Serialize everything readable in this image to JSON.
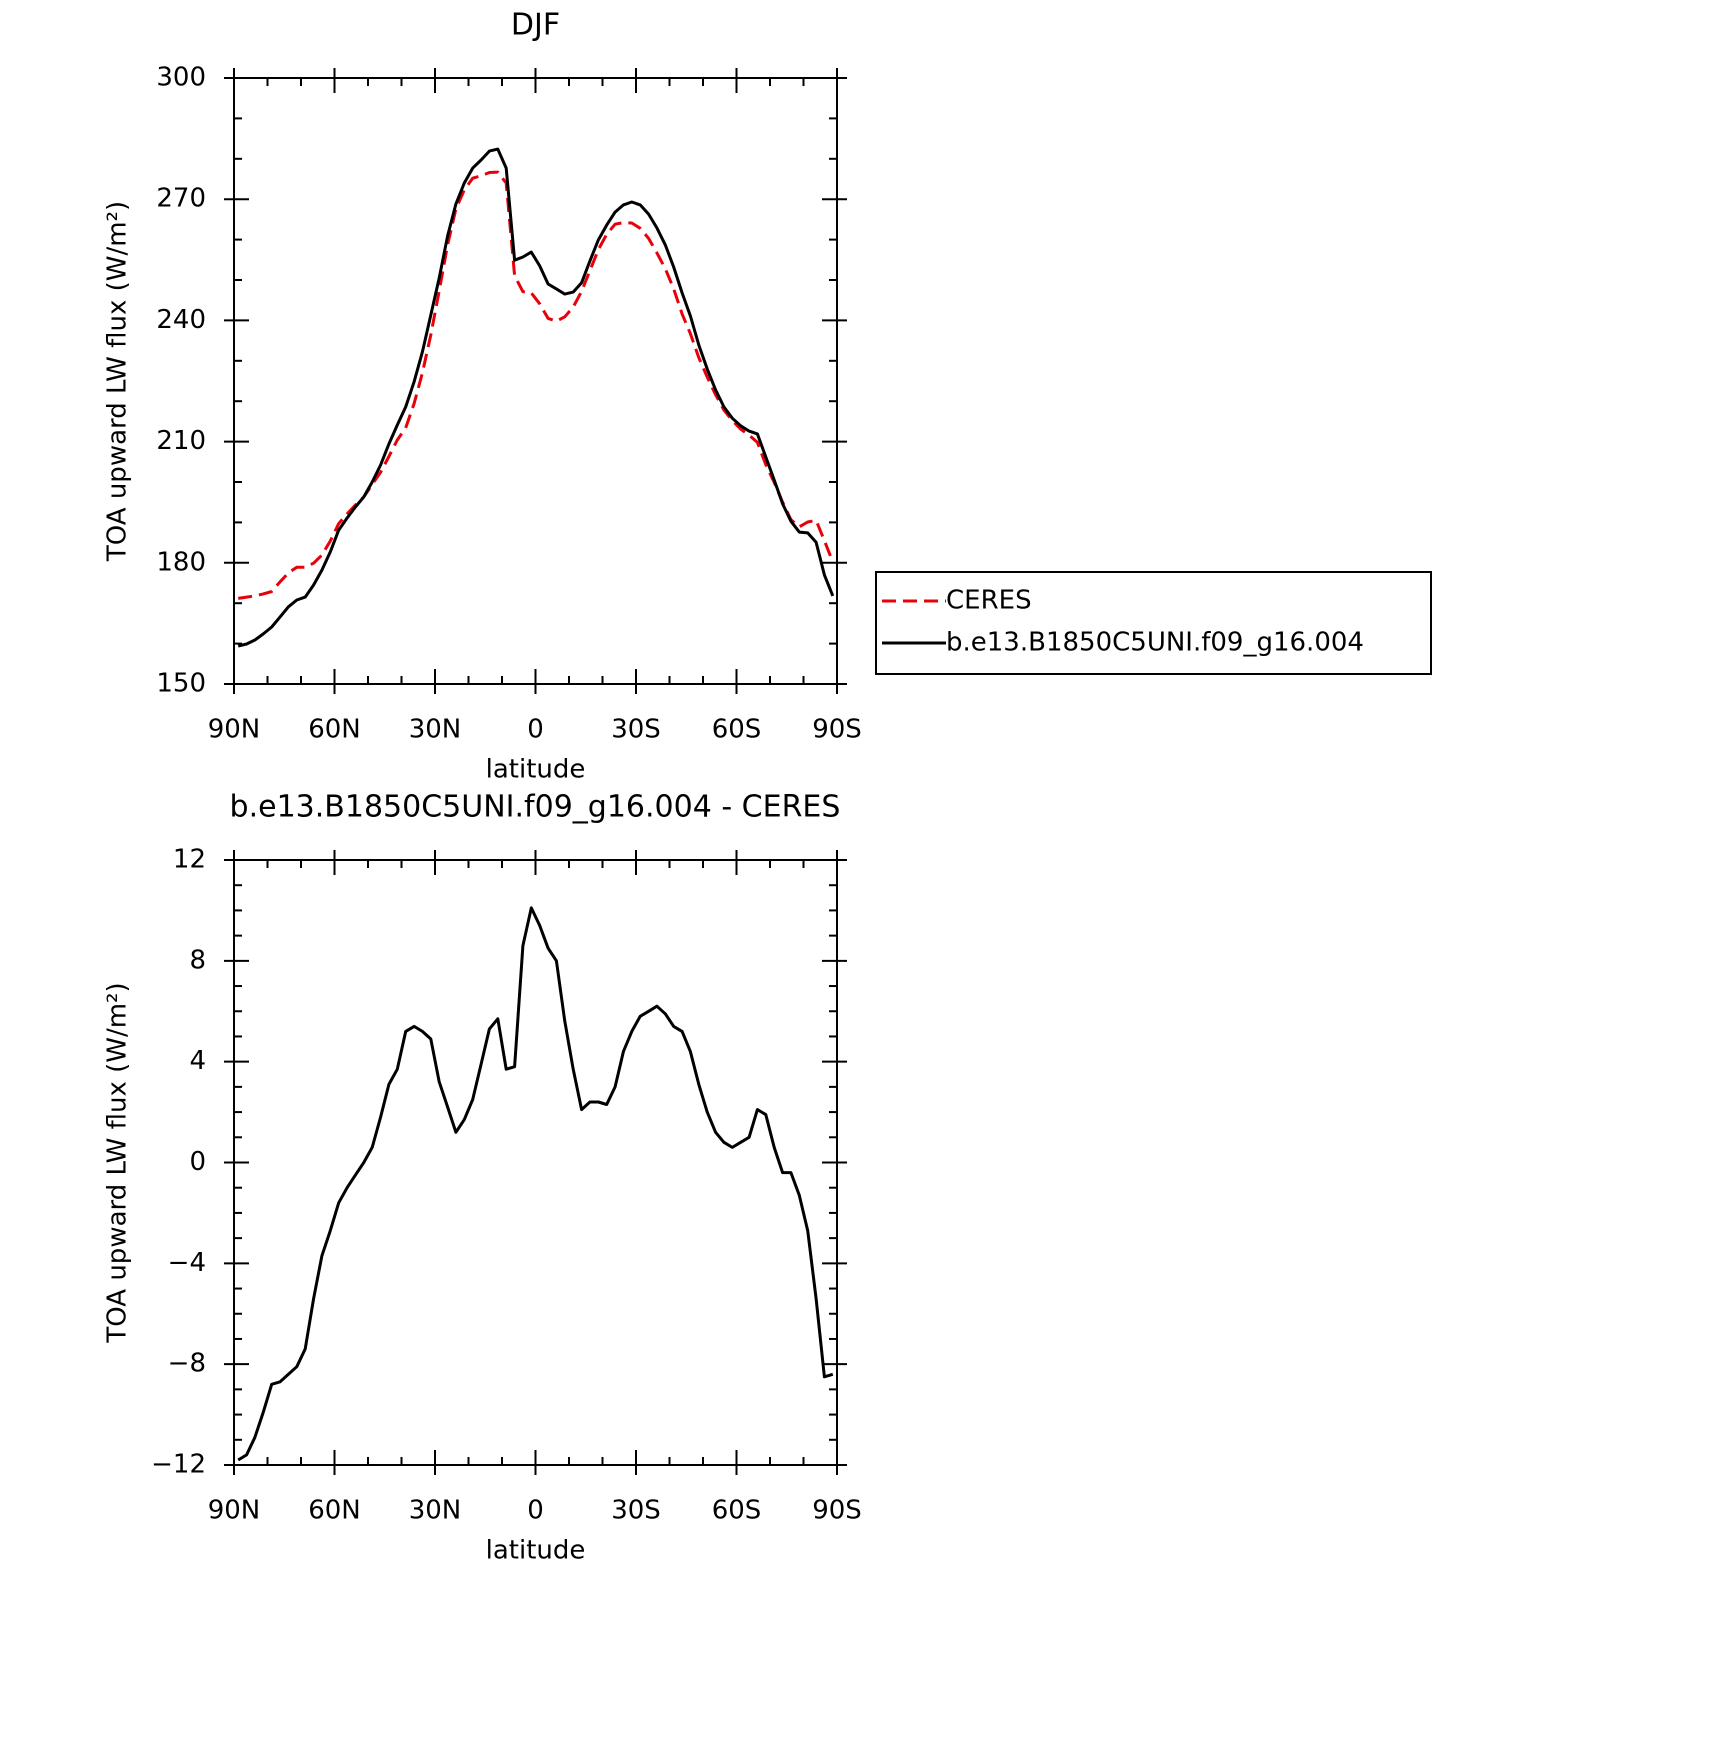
{
  "chart_data": [
    {
      "type": "line",
      "title": "DJF",
      "xlabel": "latitude",
      "ylabel": "TOA upward LW flux (W/m²)",
      "x": [
        88.75,
        86.25,
        83.75,
        81.25,
        78.75,
        76.25,
        73.75,
        71.25,
        68.75,
        66.25,
        63.75,
        61.25,
        58.75,
        56.25,
        53.75,
        51.25,
        48.75,
        46.25,
        43.75,
        41.25,
        38.75,
        36.25,
        33.75,
        31.25,
        28.75,
        26.25,
        23.75,
        21.25,
        18.75,
        16.25,
        13.75,
        11.25,
        8.75,
        6.25,
        3.75,
        1.25,
        -1.25,
        -3.75,
        -6.25,
        -8.75,
        -11.25,
        -13.75,
        -16.25,
        -18.75,
        -21.25,
        -23.75,
        -26.25,
        -28.75,
        -31.25,
        -33.75,
        -36.25,
        -38.75,
        -41.25,
        -43.75,
        -46.25,
        -48.75,
        -51.25,
        -53.75,
        -56.25,
        -58.75,
        -61.25,
        -63.75,
        -66.25,
        -68.75,
        -71.25,
        -73.75,
        -76.25,
        -78.75,
        -81.25,
        -83.75,
        -86.25,
        -88.75
      ],
      "series": [
        {
          "name": "CERES",
          "color": "#e8000b",
          "dash": true,
          "values": [
            171.2,
            171.5,
            171.8,
            172.3,
            172.9,
            175.3,
            177.5,
            178.9,
            178.9,
            179.9,
            181.9,
            185.4,
            189.7,
            192.1,
            194.3,
            196.3,
            199.4,
            202.4,
            206.3,
            210.4,
            213.4,
            219.4,
            227.0,
            236.4,
            247.3,
            258.7,
            267.6,
            272.3,
            275.2,
            275.8,
            276.6,
            276.7,
            274.0,
            251.1,
            247.1,
            246.8,
            244.1,
            240.5,
            239.8,
            240.9,
            243.3,
            247.2,
            252.3,
            257.5,
            261.3,
            263.8,
            264.2,
            264.1,
            262.8,
            260.3,
            256.7,
            252.8,
            247.8,
            241.6,
            236.7,
            230.8,
            226.0,
            221.6,
            217.8,
            215.2,
            213.1,
            211.6,
            209.8,
            204.3,
            199.9,
            195.0,
            190.7,
            188.9,
            190.1,
            190.5,
            185.5,
            180.2
          ]
        },
        {
          "name": "b.e13.B1850C5UNI.f09_g16.004",
          "color": "#000000",
          "dash": false,
          "values": [
            159.4,
            159.9,
            160.9,
            162.4,
            164.1,
            166.6,
            169.1,
            170.8,
            171.5,
            174.5,
            178.2,
            182.7,
            188.1,
            191.1,
            193.8,
            196.3,
            200.0,
            204.2,
            209.4,
            214.1,
            218.6,
            224.8,
            232.2,
            241.3,
            250.5,
            260.9,
            268.8,
            274.0,
            277.7,
            279.7,
            281.9,
            282.4,
            277.7,
            254.9,
            255.7,
            256.9,
            253.5,
            249.0,
            247.8,
            246.5,
            247.0,
            249.3,
            254.7,
            259.9,
            263.6,
            266.8,
            268.6,
            269.3,
            268.6,
            266.3,
            262.9,
            258.7,
            253.2,
            246.8,
            241.1,
            233.9,
            228.0,
            222.8,
            218.6,
            215.8,
            213.9,
            212.6,
            211.9,
            206.2,
            200.5,
            194.6,
            190.3,
            187.6,
            187.4,
            185.1,
            177.0,
            171.8
          ]
        }
      ],
      "xlim": [
        90,
        -90
      ],
      "xticks": [
        {
          "value": 90,
          "label": "90N"
        },
        {
          "value": 60,
          "label": "60N"
        },
        {
          "value": 30,
          "label": "30N"
        },
        0,
        {
          "value": -30,
          "label": "30S"
        },
        {
          "value": -60,
          "label": "60S"
        },
        {
          "value": -90,
          "label": "90S"
        }
      ],
      "ylim": [
        150,
        300
      ],
      "yticks": [
        150,
        180,
        210,
        240,
        270,
        300
      ],
      "legend": "right"
    },
    {
      "type": "line",
      "title": "b.e13.B1850C5UNI.f09_g16.004 - CERES",
      "xlabel": "latitude",
      "ylabel": "TOA upward LW flux (W/m²)",
      "x": [
        88.75,
        86.25,
        83.75,
        81.25,
        78.75,
        76.25,
        73.75,
        71.25,
        68.75,
        66.25,
        63.75,
        61.25,
        58.75,
        56.25,
        53.75,
        51.25,
        48.75,
        46.25,
        43.75,
        41.25,
        38.75,
        36.25,
        33.75,
        31.25,
        28.75,
        26.25,
        23.75,
        21.25,
        18.75,
        16.25,
        13.75,
        11.25,
        8.75,
        6.25,
        3.75,
        1.25,
        -1.25,
        -3.75,
        -6.25,
        -8.75,
        -11.25,
        -13.75,
        -16.25,
        -18.75,
        -21.25,
        -23.75,
        -26.25,
        -28.75,
        -31.25,
        -33.75,
        -36.25,
        -38.75,
        -41.25,
        -43.75,
        -46.25,
        -48.75,
        -51.25,
        -53.75,
        -56.25,
        -58.75,
        -61.25,
        -63.75,
        -66.25,
        -68.75,
        -71.25,
        -73.75,
        -76.25,
        -78.75,
        -81.25,
        -83.75,
        -86.25,
        -88.75
      ],
      "color": "#000000",
      "values": [
        -11.8,
        -11.6,
        -10.9,
        -9.9,
        -8.8,
        -8.7,
        -8.4,
        -8.1,
        -7.4,
        -5.4,
        -3.7,
        -2.7,
        -1.6,
        -1.0,
        -0.5,
        0.0,
        0.6,
        1.8,
        3.1,
        3.7,
        5.2,
        5.4,
        5.2,
        4.9,
        3.2,
        2.2,
        1.2,
        1.7,
        2.5,
        3.9,
        5.3,
        5.7,
        3.7,
        3.8,
        8.6,
        10.1,
        9.4,
        8.5,
        8.0,
        5.6,
        3.7,
        2.1,
        2.4,
        2.4,
        2.3,
        3.0,
        4.4,
        5.2,
        5.8,
        6.0,
        6.2,
        5.9,
        5.4,
        5.2,
        4.4,
        3.1,
        2.0,
        1.2,
        0.8,
        0.6,
        0.8,
        1.0,
        2.1,
        1.9,
        0.6,
        -0.4,
        -0.4,
        -1.3,
        -2.7,
        -5.4,
        -8.5,
        -8.4
      ],
      "xlim": [
        90,
        -90
      ],
      "xticks": [
        {
          "value": 90,
          "label": "90N"
        },
        {
          "value": 60,
          "label": "60N"
        },
        {
          "value": 30,
          "label": "30N"
        },
        0,
        {
          "value": -30,
          "label": "30S"
        },
        {
          "value": -60,
          "label": "60S"
        },
        {
          "value": -90,
          "label": "90S"
        }
      ],
      "ylim": [
        -12,
        12
      ],
      "yticks": [
        {
          "value": -12,
          "label": "−12"
        },
        {
          "value": -8,
          "label": "−8"
        },
        {
          "value": -4,
          "label": "−4"
        },
        0,
        4,
        8,
        12
      ]
    }
  ]
}
